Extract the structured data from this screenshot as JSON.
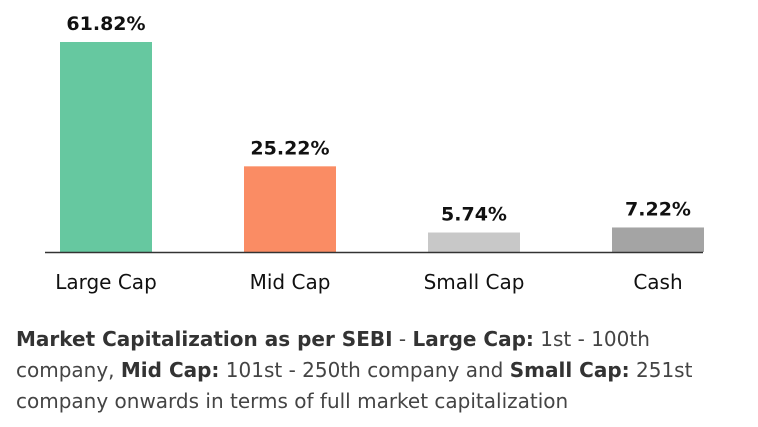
{
  "chart_data": {
    "type": "bar",
    "categories": [
      "Large Cap",
      "Mid Cap",
      "Small Cap",
      "Cash"
    ],
    "values": [
      61.82,
      25.22,
      5.74,
      7.22
    ],
    "value_labels": [
      "61.82%",
      "25.22%",
      "5.74%",
      "7.22%"
    ],
    "colors": [
      "#66c8a0",
      "#fa8c64",
      "#c8c8c8",
      "#a4a4a4"
    ],
    "baseline_color": "#333333",
    "title": "",
    "xlabel": "",
    "ylabel": "",
    "ylim": [
      0,
      61.82
    ],
    "grid": false,
    "legend": "none"
  },
  "footnote": {
    "t1": "Market Capitalization as per SEBI",
    "t2": " - ",
    "t3": "Large Cap:",
    "t4": " 1st - 100th company, ",
    "t5": "Mid Cap:",
    "t6": " 101st - 250th company and ",
    "t7": "Small Cap:",
    "t8": " 251st company onwards in terms of full market capitalization"
  }
}
